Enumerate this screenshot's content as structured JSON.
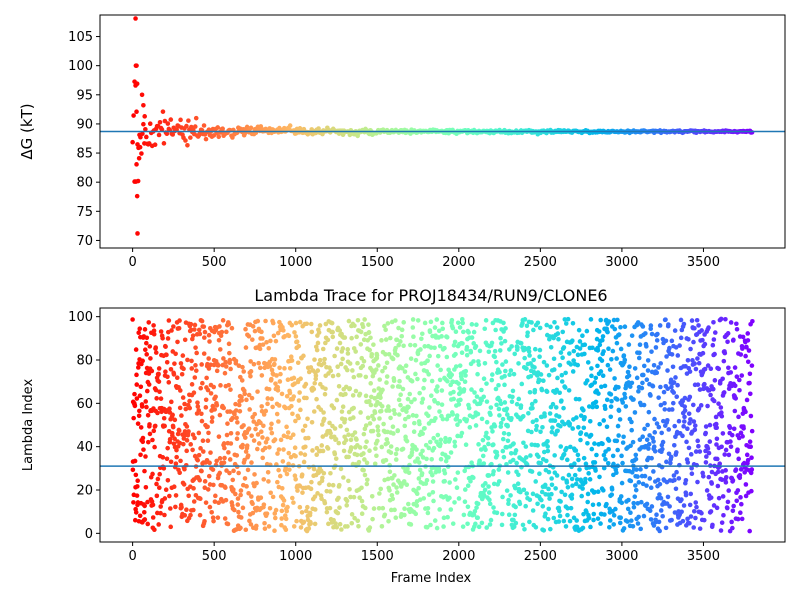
{
  "chart_data": [
    {
      "id": "dg",
      "type": "scatter",
      "title": "",
      "xlabel": "",
      "ylabel": "ΔG (kT)",
      "xlim": [
        -200,
        4000
      ],
      "ylim": [
        68.7,
        108.7
      ],
      "xticks": [
        0,
        500,
        1000,
        1500,
        2000,
        2500,
        3000,
        3500
      ],
      "yticks": [
        70,
        75,
        80,
        85,
        90,
        95,
        100,
        105
      ],
      "hline": 88.7,
      "hline_color": "#1f77b4",
      "color_scale": "rainbow (red at frame 0 → purple at frame 3800)",
      "x_range": [
        0,
        3800
      ],
      "outliers": [
        {
          "x": 18,
          "y": 108.1
        },
        {
          "x": 20,
          "y": 100.0
        },
        {
          "x": 24,
          "y": 100.0
        },
        {
          "x": 28,
          "y": 96.9
        },
        {
          "x": 24,
          "y": 92.1
        },
        {
          "x": 30,
          "y": 71.2
        },
        {
          "x": 28,
          "y": 77.6
        },
        {
          "x": 12,
          "y": 80.1
        },
        {
          "x": 20,
          "y": 80.1
        },
        {
          "x": 34,
          "y": 80.2
        },
        {
          "x": 40,
          "y": 84.1
        },
        {
          "x": 46,
          "y": 86.0
        },
        {
          "x": 58,
          "y": 95.0
        },
        {
          "x": 66,
          "y": 93.2
        },
        {
          "x": 74,
          "y": 91.3
        }
      ],
      "series_summary": "Noisy at start (±10), converges to ~88.7 kT by frame ~800"
    },
    {
      "id": "lambda",
      "type": "scatter",
      "title": "Lambda Trace for PROJ18434/RUN9/CLONE6",
      "xlabel": "Frame Index",
      "ylabel": "Lambda Index",
      "xlim": [
        -200,
        4000
      ],
      "ylim": [
        -4,
        104
      ],
      "xticks": [
        0,
        500,
        1000,
        1500,
        2000,
        2500,
        3000,
        3500
      ],
      "yticks": [
        0,
        20,
        40,
        60,
        80,
        100
      ],
      "hline": 31,
      "hline_color": "#1f77b4",
      "color_scale": "rainbow (red at frame 0 → purple at frame 3800)",
      "x_range": [
        0,
        3800
      ],
      "y_range": [
        1,
        99
      ],
      "series_summary": "Frames 0–3800, lambda index sampled roughly uniformly over 1–99"
    }
  ]
}
